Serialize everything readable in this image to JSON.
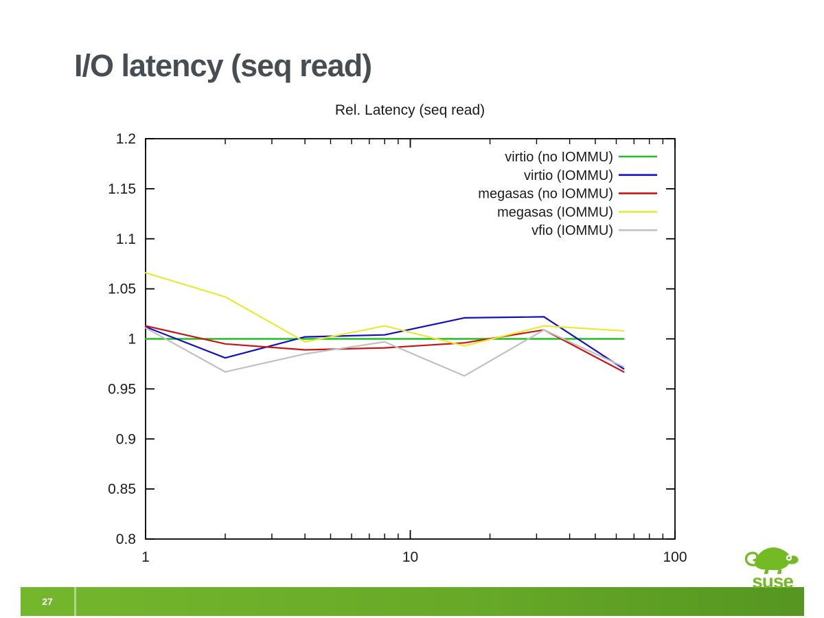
{
  "slide": {
    "title": "I/O latency (seq read)"
  },
  "footer": {
    "page_number": "27",
    "bar_color_left": "#74b62c",
    "bar_color_right": "#559621"
  },
  "logo": {
    "wordmark": "suse",
    "brand_color": "#73ba25"
  },
  "chart_data": {
    "type": "line",
    "title": "Rel. Latency (seq read)",
    "x_scale": "log",
    "xlim": [
      1,
      100
    ],
    "ylim": [
      0.8,
      1.2
    ],
    "x_ticks": [
      1,
      10,
      100
    ],
    "y_ticks": [
      0.8,
      0.85,
      0.9,
      0.95,
      1,
      1.05,
      1.1,
      1.15,
      1.2
    ],
    "grid": false,
    "legend_position": "top-right-inside",
    "x": [
      1,
      2,
      4,
      8,
      16,
      32,
      64
    ],
    "series": [
      {
        "name": "virtio (no IOMMU)",
        "color": "#21c021",
        "values": [
          1.0,
          1.0,
          1.0,
          1.0,
          1.0,
          1.0,
          1.0
        ]
      },
      {
        "name": "virtio (IOMMU)",
        "color": "#1010c0",
        "values": [
          1.012,
          0.981,
          1.002,
          1.004,
          1.021,
          1.022,
          0.97
        ]
      },
      {
        "name": "megasas (no IOMMU)",
        "color": "#c81414",
        "values": [
          1.013,
          0.995,
          0.989,
          0.991,
          0.996,
          1.009,
          0.967
        ]
      },
      {
        "name": "megasas (IOMMU)",
        "color": "#e9e931",
        "values": [
          1.066,
          1.042,
          0.997,
          1.013,
          0.993,
          1.013,
          1.008
        ]
      },
      {
        "name": "vfio (IOMMU)",
        "color": "#c0c0c0",
        "values": [
          1.011,
          0.967,
          0.985,
          0.997,
          0.963,
          1.009,
          0.972
        ]
      }
    ],
    "axis_color": "#000000",
    "text_color": "#1a1a1a"
  }
}
